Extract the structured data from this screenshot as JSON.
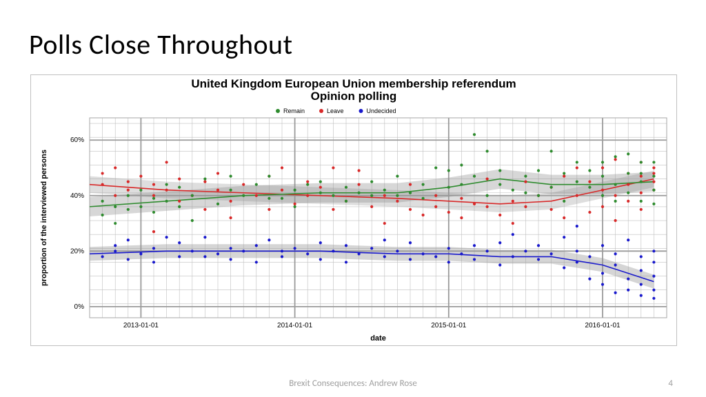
{
  "slide": {
    "title": "Polls Close Throughout",
    "footer": "Brexit Consequences: Andrew Rose",
    "page": "4"
  },
  "chart": {
    "type": "scatter+smooth",
    "title": "United Kingdom European Union membership referendum\nOpinion polling",
    "title_fontsize": 17,
    "title_weight": "600",
    "xlabel": "date",
    "ylabel": "proportion of the interviewed persons",
    "label_fontsize": 11,
    "background_color": "#ffffff",
    "plot_bg": "#ffffff",
    "border_color": "#a6a6a6",
    "grid": {
      "major_color": "#9a9a9a",
      "major_width": 1.8,
      "minor_color": "#bfbfbf",
      "minor_width": 0.6
    },
    "x": {
      "min": 0,
      "max": 45,
      "major_ticks": [
        4,
        16,
        28,
        40
      ],
      "major_labels": [
        "2013-01-01",
        "2014-01-01",
        "2015-01-01",
        "2016-01-01"
      ],
      "minor_step": 1
    },
    "y": {
      "min": -4,
      "max": 68,
      "major_ticks": [
        0,
        20,
        40,
        60
      ],
      "major_labels": [
        "0%",
        "20%",
        "40%",
        "60%"
      ],
      "minor_step": 5
    },
    "legend": {
      "items": [
        {
          "label": "Remain",
          "color": "#2e8b2e"
        },
        {
          "label": "Leave",
          "color": "#d82828"
        },
        {
          "label": "Undecided",
          "color": "#1818cc"
        }
      ],
      "fontsize": 9
    },
    "marker_radius": 2.1,
    "series": {
      "remain": {
        "color": "#2e8b2e",
        "band_color": "rgba(140,140,140,0.35)",
        "trend": [
          [
            0,
            36
          ],
          [
            6,
            38
          ],
          [
            12,
            40
          ],
          [
            18,
            41
          ],
          [
            24,
            41
          ],
          [
            28,
            43
          ],
          [
            32,
            46
          ],
          [
            36,
            44
          ],
          [
            40,
            44
          ],
          [
            44,
            45
          ]
        ],
        "band_w": 3.5,
        "points": [
          [
            1,
            33
          ],
          [
            1,
            38
          ],
          [
            2,
            30
          ],
          [
            2,
            36
          ],
          [
            3,
            40
          ],
          [
            3,
            35
          ],
          [
            4,
            42
          ],
          [
            4,
            36
          ],
          [
            5,
            34
          ],
          [
            5,
            39
          ],
          [
            6,
            44
          ],
          [
            6,
            38
          ],
          [
            7,
            43
          ],
          [
            7,
            36
          ],
          [
            8,
            40
          ],
          [
            8,
            31
          ],
          [
            9,
            46
          ],
          [
            10,
            37
          ],
          [
            11,
            42
          ],
          [
            11,
            47
          ],
          [
            12,
            40
          ],
          [
            13,
            44
          ],
          [
            14,
            39
          ],
          [
            14,
            47
          ],
          [
            15,
            39
          ],
          [
            16,
            42
          ],
          [
            16,
            36
          ],
          [
            17,
            44
          ],
          [
            18,
            41
          ],
          [
            18,
            45
          ],
          [
            19,
            40
          ],
          [
            20,
            43
          ],
          [
            20,
            38
          ],
          [
            21,
            41
          ],
          [
            22,
            45
          ],
          [
            22,
            40
          ],
          [
            23,
            42
          ],
          [
            24,
            40
          ],
          [
            24,
            47
          ],
          [
            25,
            41
          ],
          [
            26,
            39
          ],
          [
            26,
            44
          ],
          [
            27,
            50
          ],
          [
            28,
            43
          ],
          [
            28,
            49
          ],
          [
            29,
            51
          ],
          [
            29,
            44
          ],
          [
            30,
            62
          ],
          [
            30,
            47
          ],
          [
            31,
            40
          ],
          [
            31,
            56
          ],
          [
            32,
            44
          ],
          [
            32,
            49
          ],
          [
            33,
            42
          ],
          [
            34,
            47
          ],
          [
            34,
            41
          ],
          [
            35,
            49
          ],
          [
            35,
            40
          ],
          [
            36,
            43
          ],
          [
            36,
            56
          ],
          [
            37,
            38
          ],
          [
            37,
            48
          ],
          [
            38,
            45
          ],
          [
            38,
            52
          ],
          [
            39,
            43
          ],
          [
            39,
            49
          ],
          [
            40,
            40
          ],
          [
            40,
            52
          ],
          [
            40,
            47
          ],
          [
            41,
            44
          ],
          [
            41,
            54
          ],
          [
            41,
            38
          ],
          [
            42,
            48
          ],
          [
            42,
            41
          ],
          [
            42,
            55
          ],
          [
            43,
            45
          ],
          [
            43,
            52
          ],
          [
            43,
            38
          ],
          [
            43,
            48
          ],
          [
            44,
            52
          ],
          [
            44,
            42
          ],
          [
            44,
            47
          ],
          [
            44,
            37
          ]
        ]
      },
      "leave": {
        "color": "#d82828",
        "band_color": "rgba(160,160,160,0.35)",
        "trend": [
          [
            0,
            44
          ],
          [
            6,
            42
          ],
          [
            12,
            41
          ],
          [
            18,
            40
          ],
          [
            24,
            39
          ],
          [
            28,
            38
          ],
          [
            32,
            37
          ],
          [
            36,
            38
          ],
          [
            40,
            42
          ],
          [
            44,
            46
          ]
        ],
        "band_w": 3,
        "points": [
          [
            1,
            44
          ],
          [
            1,
            48
          ],
          [
            2,
            40
          ],
          [
            2,
            50
          ],
          [
            3,
            42
          ],
          [
            3,
            45
          ],
          [
            4,
            47
          ],
          [
            5,
            40
          ],
          [
            5,
            44
          ],
          [
            5,
            27
          ],
          [
            6,
            52
          ],
          [
            6,
            42
          ],
          [
            7,
            38
          ],
          [
            7,
            46
          ],
          [
            8,
            40
          ],
          [
            9,
            45
          ],
          [
            9,
            35
          ],
          [
            10,
            48
          ],
          [
            10,
            42
          ],
          [
            11,
            38
          ],
          [
            11,
            32
          ],
          [
            12,
            44
          ],
          [
            13,
            40
          ],
          [
            14,
            47
          ],
          [
            14,
            35
          ],
          [
            15,
            50
          ],
          [
            15,
            42
          ],
          [
            16,
            37
          ],
          [
            17,
            45
          ],
          [
            17,
            40
          ],
          [
            18,
            43
          ],
          [
            19,
            50
          ],
          [
            19,
            35
          ],
          [
            20,
            38
          ],
          [
            21,
            44
          ],
          [
            21,
            49
          ],
          [
            22,
            36
          ],
          [
            23,
            40
          ],
          [
            23,
            30
          ],
          [
            24,
            38
          ],
          [
            25,
            35
          ],
          [
            25,
            44
          ],
          [
            26,
            33
          ],
          [
            27,
            40
          ],
          [
            27,
            36
          ],
          [
            28,
            34
          ],
          [
            29,
            39
          ],
          [
            29,
            32
          ],
          [
            30,
            37
          ],
          [
            31,
            46
          ],
          [
            31,
            36
          ],
          [
            32,
            33
          ],
          [
            33,
            38
          ],
          [
            33,
            30
          ],
          [
            34,
            45
          ],
          [
            34,
            36
          ],
          [
            35,
            40
          ],
          [
            36,
            35
          ],
          [
            36,
            43
          ],
          [
            37,
            47
          ],
          [
            37,
            32
          ],
          [
            38,
            40
          ],
          [
            38,
            50
          ],
          [
            39,
            34
          ],
          [
            39,
            45
          ],
          [
            40,
            42
          ],
          [
            40,
            50
          ],
          [
            40,
            36
          ],
          [
            41,
            53
          ],
          [
            41,
            40
          ],
          [
            41,
            31
          ],
          [
            42,
            48
          ],
          [
            42,
            44
          ],
          [
            42,
            38
          ],
          [
            43,
            52
          ],
          [
            43,
            41
          ],
          [
            43,
            47
          ],
          [
            43,
            35
          ],
          [
            44,
            45
          ],
          [
            44,
            50
          ],
          [
            44,
            42
          ],
          [
            44,
            48
          ]
        ]
      },
      "undecided": {
        "color": "#1818cc",
        "band_color": "rgba(150,150,150,0.4)",
        "trend": [
          [
            0,
            19
          ],
          [
            6,
            20
          ],
          [
            12,
            20
          ],
          [
            18,
            20
          ],
          [
            24,
            19
          ],
          [
            28,
            19
          ],
          [
            32,
            18
          ],
          [
            36,
            18
          ],
          [
            40,
            15
          ],
          [
            44,
            9
          ]
        ],
        "band_w": 2.5,
        "points": [
          [
            1,
            18
          ],
          [
            2,
            20
          ],
          [
            2,
            22
          ],
          [
            3,
            17
          ],
          [
            3,
            24
          ],
          [
            4,
            19
          ],
          [
            5,
            21
          ],
          [
            5,
            16
          ],
          [
            6,
            25
          ],
          [
            7,
            18
          ],
          [
            7,
            23
          ],
          [
            8,
            20
          ],
          [
            9,
            18
          ],
          [
            9,
            25
          ],
          [
            10,
            19
          ],
          [
            11,
            21
          ],
          [
            11,
            17
          ],
          [
            12,
            20
          ],
          [
            13,
            22
          ],
          [
            13,
            16
          ],
          [
            14,
            24
          ],
          [
            15,
            20
          ],
          [
            15,
            18
          ],
          [
            16,
            21
          ],
          [
            17,
            19
          ],
          [
            18,
            23
          ],
          [
            18,
            17
          ],
          [
            19,
            20
          ],
          [
            20,
            22
          ],
          [
            20,
            16
          ],
          [
            21,
            19
          ],
          [
            22,
            21
          ],
          [
            23,
            24
          ],
          [
            23,
            18
          ],
          [
            24,
            20
          ],
          [
            25,
            17
          ],
          [
            25,
            23
          ],
          [
            26,
            19
          ],
          [
            27,
            18
          ],
          [
            28,
            21
          ],
          [
            28,
            16
          ],
          [
            29,
            19
          ],
          [
            30,
            17
          ],
          [
            30,
            22
          ],
          [
            31,
            20
          ],
          [
            32,
            15
          ],
          [
            32,
            23
          ],
          [
            33,
            18
          ],
          [
            33,
            26
          ],
          [
            34,
            20
          ],
          [
            35,
            17
          ],
          [
            35,
            22
          ],
          [
            36,
            19
          ],
          [
            37,
            14
          ],
          [
            37,
            25
          ],
          [
            38,
            29
          ],
          [
            38,
            16
          ],
          [
            38,
            20
          ],
          [
            39,
            10
          ],
          [
            39,
            18
          ],
          [
            40,
            12
          ],
          [
            40,
            22
          ],
          [
            40,
            8
          ],
          [
            41,
            15
          ],
          [
            41,
            5
          ],
          [
            41,
            19
          ],
          [
            42,
            10
          ],
          [
            42,
            24
          ],
          [
            42,
            6
          ],
          [
            43,
            13
          ],
          [
            43,
            18
          ],
          [
            43,
            4
          ],
          [
            43,
            8
          ],
          [
            44,
            11
          ],
          [
            44,
            16
          ],
          [
            44,
            6
          ],
          [
            44,
            20
          ],
          [
            44,
            3
          ]
        ]
      }
    }
  }
}
